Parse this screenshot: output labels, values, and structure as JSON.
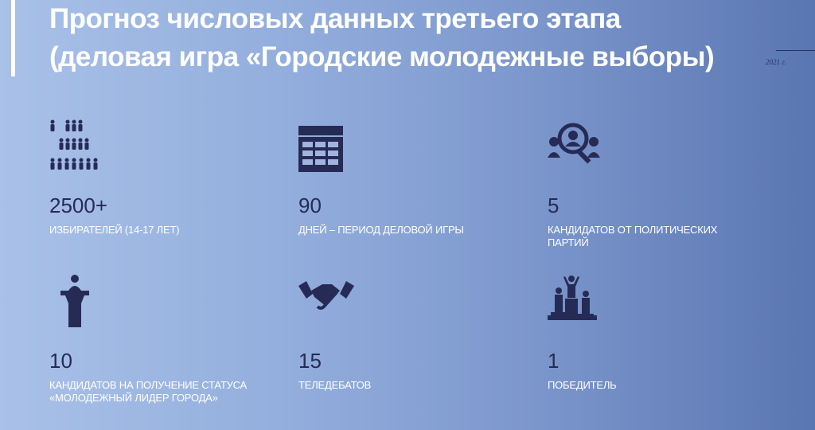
{
  "title": "Прогноз числовых данных третьего этапа (деловая игра «Городские молодежные выборы)",
  "year": "2021 г.",
  "colors": {
    "icon": "#262b55",
    "label": "#ffffff",
    "accent_bar": "#ffffff"
  },
  "stats": [
    {
      "icon": "people-pyramid-icon",
      "value": "2500+",
      "label": "ИЗБИРАТЕЛЕЙ (14-17 ЛЕТ)"
    },
    {
      "icon": "calendar-icon",
      "value": "90",
      "label": "ДНЕЙ – ПЕРИОД ДЕЛОВОЙ ИГРЫ"
    },
    {
      "icon": "candidate-search-icon",
      "value": "5",
      "label": "КАНДИДАТОВ ОТ ПОЛИТИЧЕСКИХ ПАРТИЙ"
    },
    {
      "icon": "podium-speaker-icon",
      "value": "10",
      "label": "КАНДИДАТОВ НА ПОЛУЧЕНИЕ СТАТУСА «МОЛОДЕЖНЫЙ ЛИДЕР ГОРОДА»"
    },
    {
      "icon": "handshake-icon",
      "value": "15",
      "label": "ТЕЛЕДЕБАТОВ"
    },
    {
      "icon": "winner-pedestal-icon",
      "value": "1",
      "label": "ПОБЕДИТЕЛЬ"
    }
  ]
}
